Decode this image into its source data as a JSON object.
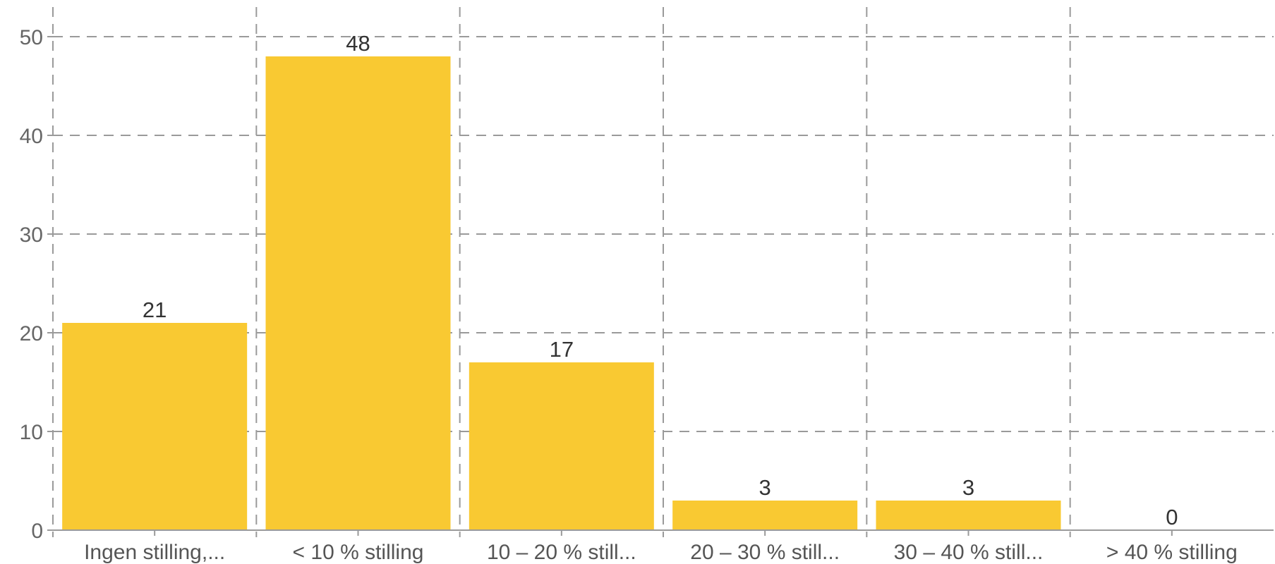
{
  "chart_data": {
    "type": "bar",
    "categories": [
      "Ingen stilling,...",
      "< 10 % stilling",
      "10 – 20 % still...",
      "20 – 30 % still...",
      "30 – 40 % still...",
      "> 40 % stilling"
    ],
    "values": [
      21,
      48,
      17,
      3,
      3,
      0
    ],
    "ylim": [
      0,
      50
    ],
    "yticks": [
      0,
      10,
      20,
      30,
      40,
      50
    ],
    "grid": true,
    "bar_color": "#F9C932",
    "title": "",
    "xlabel": "",
    "ylabel": ""
  }
}
